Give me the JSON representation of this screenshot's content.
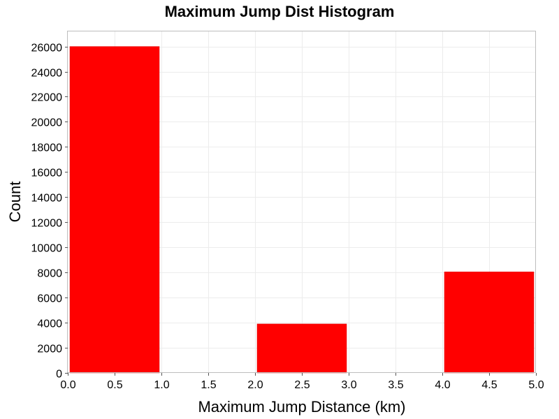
{
  "chart_data": {
    "type": "bar",
    "title": "Maximum Jump Dist Histogram",
    "xlabel": "Maximum Jump Distance (km)",
    "ylabel": "Count",
    "xlim": [
      0,
      5
    ],
    "ylim": [
      0,
      27200
    ],
    "x_ticks": [
      "0.0",
      "0.5",
      "1.0",
      "1.5",
      "2.0",
      "2.5",
      "3.0",
      "3.5",
      "4.0",
      "4.5",
      "5.0"
    ],
    "y_ticks": [
      "0",
      "2000",
      "4000",
      "6000",
      "8000",
      "10000",
      "12000",
      "14000",
      "16000",
      "18000",
      "20000",
      "22000",
      "24000",
      "26000"
    ],
    "bins": [
      {
        "x0": 0,
        "x1": 1,
        "value": 26000
      },
      {
        "x0": 1,
        "x1": 2,
        "value": 0
      },
      {
        "x0": 2,
        "x1": 3,
        "value": 3900
      },
      {
        "x0": 3,
        "x1": 4,
        "value": 0
      },
      {
        "x0": 4,
        "x1": 5,
        "value": 8050
      }
    ],
    "bar_color": "#ff0000",
    "grid": true
  }
}
